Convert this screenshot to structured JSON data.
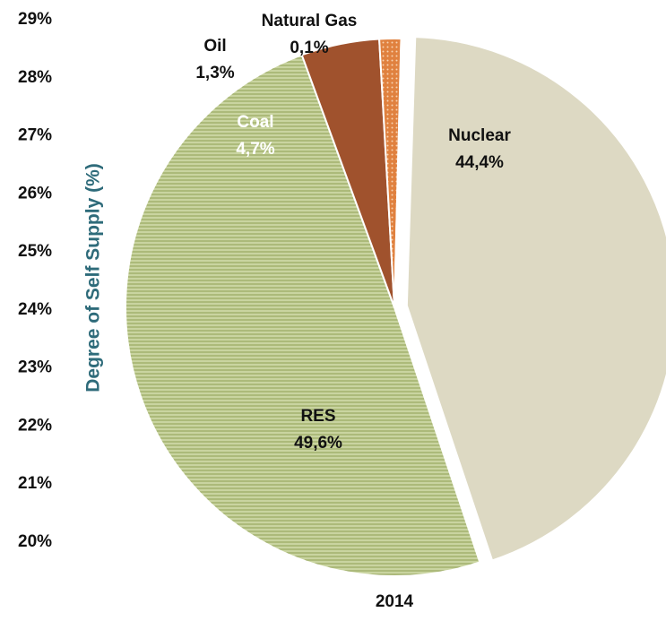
{
  "chart_data": {
    "type": "pie",
    "y_axis_label": "Degree of Self Supply (%)",
    "x_category": "2014",
    "ylim": [
      20,
      29
    ],
    "yticks": [
      {
        "value": 20,
        "label": "20%"
      },
      {
        "value": 21,
        "label": "21%"
      },
      {
        "value": 22,
        "label": "22%"
      },
      {
        "value": 23,
        "label": "23%"
      },
      {
        "value": 24,
        "label": "24%"
      },
      {
        "value": 25,
        "label": "25%"
      },
      {
        "value": 26,
        "label": "26%"
      },
      {
        "value": 27,
        "label": "27%"
      },
      {
        "value": 28,
        "label": "28%"
      },
      {
        "value": 29,
        "label": "29%"
      }
    ],
    "categories": [
      "Nuclear",
      "RES",
      "Coal",
      "Oil",
      "Natural Gas"
    ],
    "values": [
      44.4,
      49.6,
      4.7,
      1.3,
      0.1
    ],
    "value_labels": [
      "44,4%",
      "49,6%",
      "4,7%",
      "1,3%",
      "0,1%"
    ],
    "colors": [
      "#ddd9c3",
      "#b9c78a",
      "#a0522d",
      "#e0813f",
      "#f4b77a"
    ]
  }
}
